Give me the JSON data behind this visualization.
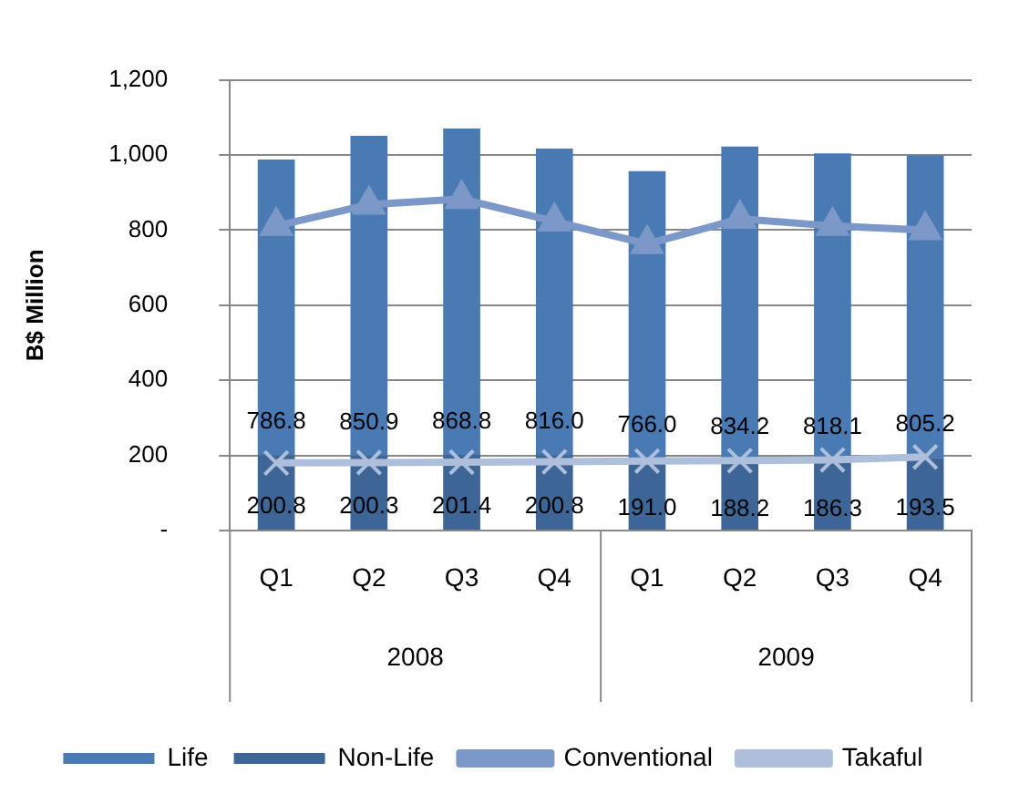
{
  "chart_data": {
    "type": "bar",
    "ylabel": "B$ Million",
    "categories": [
      "Q1",
      "Q2",
      "Q3",
      "Q4",
      "Q1",
      "Q2",
      "Q3",
      "Q4"
    ],
    "stacked": true,
    "series": [
      {
        "name": "Non-Life",
        "color": "#3d6596",
        "values": [
          200.8,
          200.3,
          201.4,
          200.8,
          191.0,
          188.2,
          186.3,
          193.5
        ],
        "value_labels": [
          "200.8",
          "200.3",
          "201.4",
          "200.8",
          "191.0",
          "188.2",
          "186.3",
          "193.5"
        ]
      },
      {
        "name": "Life",
        "color": "#4a7ab4",
        "values": [
          786.8,
          850.9,
          868.8,
          816.0,
          766.0,
          834.2,
          818.1,
          805.2
        ],
        "value_labels": [
          "786.8",
          "850.9",
          "868.8",
          "816.0",
          "766.0",
          "834.2",
          "818.1",
          "805.2"
        ]
      },
      {
        "name": "Conventional",
        "type": "line",
        "color": "#7b98c8",
        "marker": "triangle",
        "values": [
          811,
          868,
          883,
          823,
          763,
          830,
          811,
          800
        ]
      },
      {
        "name": "Takaful",
        "type": "line",
        "color": "#aebfdc",
        "marker": "cross",
        "values": [
          180,
          181,
          182,
          183,
          185,
          186,
          188,
          196
        ]
      }
    ],
    "ylim": [
      0,
      1200
    ],
    "yticks": [
      {
        "value": 0,
        "label": "-"
      },
      200,
      400,
      600,
      800,
      {
        "value": 1000,
        "label": "1,000"
      },
      {
        "value": 1200,
        "label": "1,200"
      }
    ],
    "grid": "y",
    "legend": "bottom",
    "annotations": [
      "2008",
      "2009"
    ]
  }
}
